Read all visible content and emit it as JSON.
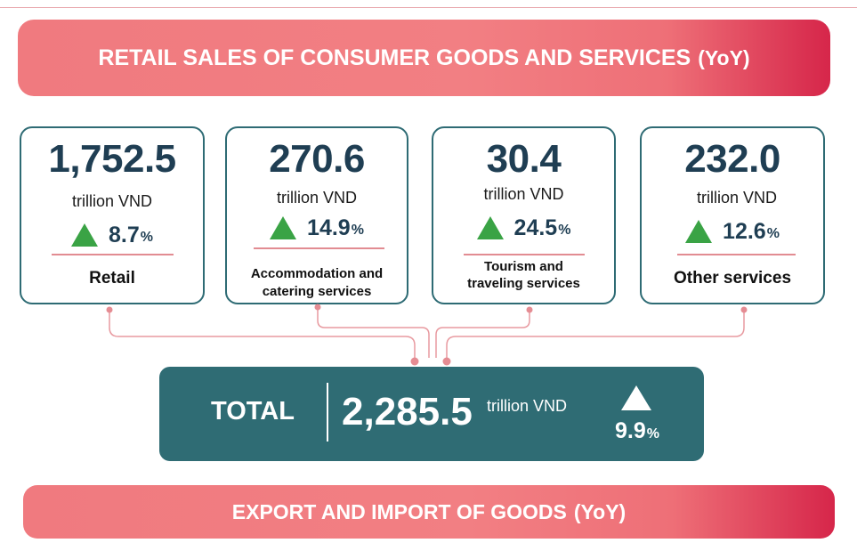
{
  "header": {
    "title": "RETAIL SALES OF CONSUMER GOODS AND SERVICES",
    "suffix": "(YoY)"
  },
  "cards": [
    {
      "value": "1,752.5",
      "unit": "trillion VND",
      "growth": "8.7",
      "pct_sign": "%",
      "category": "Retail"
    },
    {
      "value": "270.6",
      "unit": "trillion VND",
      "growth": "14.9",
      "pct_sign": "%",
      "category_line1": "Accommodation and",
      "category_line2": "catering services"
    },
    {
      "value": "30.4",
      "unit": "trillion VND",
      "growth": "24.5",
      "pct_sign": "%",
      "category_line1": "Tourism and",
      "category_line2": "traveling services"
    },
    {
      "value": "232.0",
      "unit": "trillion VND",
      "growth": "12.6",
      "pct_sign": "%",
      "category": "Other services"
    }
  ],
  "total": {
    "label": "TOTAL",
    "value": "2,285.5",
    "unit": "trillion VND",
    "growth": "9.9",
    "pct_sign": "%"
  },
  "footer": {
    "title": "EXPORT AND IMPORT OF GOODS",
    "suffix": "(YoY)"
  },
  "colors": {
    "banner": "#f27f83",
    "card_border": "#2e6b74",
    "total_bg": "#2f6c74",
    "up_arrow": "#3aa345",
    "value_text": "#1f3e53",
    "connector": "#e89aa0"
  },
  "icons": {
    "growth": "up-triangle-icon"
  }
}
